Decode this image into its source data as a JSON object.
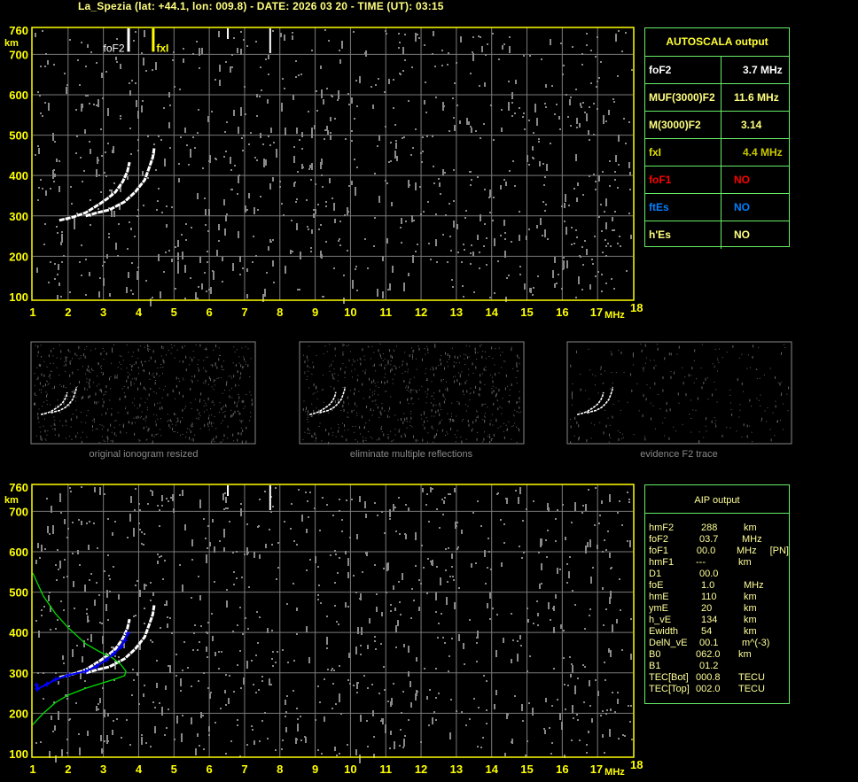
{
  "title": "La_Spezia (lat: +44.1, lon: 009.8) - DATE: 2026 03 20 - TIME (UT): 03:15",
  "colors": {
    "axis": "#ffff00",
    "grid": "#7a7a7a",
    "trace": "#ffffff",
    "noise": "#8a8a8a",
    "profile": "#00dd00",
    "model_trace": "#0000ff",
    "panel_border": "#66ee66",
    "foF1": "#ff0000",
    "ftEs": "#0080ff",
    "fxI": "#c8c800"
  },
  "autoscala": {
    "header": "AUTOSCALA output",
    "rows": [
      {
        "key": "foF2",
        "value": "3.7 MHz",
        "color": "#ffffff",
        "value_color": "#ffffff"
      },
      {
        "key": "MUF(3000)F2",
        "value": "11.6 MHz",
        "color": "#ffff80",
        "value_color": "#ffff80"
      },
      {
        "key": "M(3000)F2",
        "value": "3.14",
        "color": "#ffff80",
        "value_color": "#ffff80"
      },
      {
        "key": "fxI",
        "value": "4.4 MHz",
        "color": "#e0e000",
        "value_color": "#c8c800"
      },
      {
        "key": "foF1",
        "value": "NO",
        "color": "#ff0000",
        "value_color": "#ff0000"
      },
      {
        "key": "ftEs",
        "value": "NO",
        "color": "#0080ff",
        "value_color": "#0080ff"
      },
      {
        "key": "h'Es",
        "value": "NO",
        "color": "#ffff80",
        "value_color": "#ffff80"
      }
    ]
  },
  "aip": {
    "header": "AIP output",
    "rows": [
      [
        "hmF2",
        "288",
        "km",
        ""
      ],
      [
        "foF2",
        "03.7",
        "MHz",
        ""
      ],
      [
        "foF1",
        "00.0",
        "MHz",
        "[PN]"
      ],
      [
        "hmF1",
        "---",
        "km",
        ""
      ],
      [
        "D1",
        "00.0",
        "",
        ""
      ],
      [
        "foE",
        "1.0",
        "MHz",
        ""
      ],
      [
        "hmE",
        "110",
        "km",
        ""
      ],
      [
        "ymE",
        "20",
        "km",
        ""
      ],
      [
        "h_vE",
        "134",
        "km",
        ""
      ],
      [
        "Ewidth",
        "54",
        "km",
        ""
      ],
      [
        "DelN_vE",
        "00.1",
        "m^(-3)",
        ""
      ],
      [
        "B0",
        "062.0",
        "km",
        ""
      ],
      [
        "B1",
        "01.2",
        "",
        ""
      ],
      [
        "TEC[Bot]",
        "000.8",
        "TECU",
        ""
      ],
      [
        "TEC[Top]",
        "002.0",
        "TECU",
        ""
      ]
    ]
  },
  "thumbnails": [
    "original ionogram resized",
    "eliminate multiple reflections",
    "evidence F2 trace"
  ],
  "chart_data": [
    {
      "type": "scatter",
      "xlabel": "MHz",
      "ylabel": "km",
      "xlim": [
        1,
        18
      ],
      "ylim": [
        100,
        760
      ],
      "xticks": [
        "1",
        "2",
        "3",
        "4",
        "5",
        "6",
        "7",
        "8",
        "9",
        "10",
        "11",
        "12",
        "13",
        "14",
        "15",
        "16",
        "17",
        "18"
      ],
      "yticks": [
        "100",
        "200",
        "300",
        "400",
        "500",
        "600",
        "700",
        "760"
      ],
      "grid": true,
      "markers": [
        {
          "label": "foF2",
          "freq": 3.7,
          "color": "#ffffff"
        },
        {
          "label": "fxI",
          "freq": 4.4,
          "color": "#ffff00"
        }
      ],
      "traces": {
        "ordinary": [
          [
            1.75,
            289
          ],
          [
            2.1,
            296
          ],
          [
            2.5,
            308
          ],
          [
            2.9,
            330
          ],
          [
            3.1,
            342
          ],
          [
            3.34,
            359
          ],
          [
            3.55,
            385
          ],
          [
            3.68,
            410
          ],
          [
            3.74,
            433
          ]
        ],
        "extraordinary": [
          [
            2.5,
            300
          ],
          [
            2.83,
            308
          ],
          [
            3.17,
            315
          ],
          [
            3.6,
            335
          ],
          [
            3.9,
            359
          ],
          [
            4.17,
            389
          ],
          [
            4.3,
            420
          ],
          [
            4.4,
            445
          ],
          [
            4.44,
            468
          ]
        ]
      }
    },
    {
      "type": "line",
      "xlabel": "MHz",
      "ylabel": "km",
      "xlim": [
        1,
        18
      ],
      "ylim": [
        100,
        760
      ],
      "xticks": [
        "1",
        "2",
        "3",
        "4",
        "5",
        "6",
        "7",
        "8",
        "9",
        "10",
        "11",
        "12",
        "13",
        "14",
        "15",
        "16",
        "17",
        "18"
      ],
      "yticks": [
        "100",
        "200",
        "300",
        "400",
        "500",
        "600",
        "700",
        "760"
      ],
      "grid": true,
      "traces": {
        "ordinary": [
          [
            1.75,
            289
          ],
          [
            2.1,
            296
          ],
          [
            2.5,
            308
          ],
          [
            2.9,
            330
          ],
          [
            3.1,
            342
          ],
          [
            3.34,
            359
          ],
          [
            3.55,
            385
          ],
          [
            3.68,
            410
          ],
          [
            3.74,
            433
          ]
        ],
        "extraordinary": [
          [
            2.5,
            300
          ],
          [
            2.83,
            308
          ],
          [
            3.17,
            315
          ],
          [
            3.6,
            335
          ],
          [
            3.9,
            359
          ],
          [
            4.17,
            389
          ],
          [
            4.3,
            420
          ],
          [
            4.4,
            445
          ],
          [
            4.44,
            468
          ]
        ]
      },
      "profile": [
        [
          1.0,
          547
        ],
        [
          1.3,
          490
        ],
        [
          1.65,
          446
        ],
        [
          2.0,
          412
        ],
        [
          2.5,
          372
        ],
        [
          2.9,
          352
        ],
        [
          3.26,
          337
        ],
        [
          3.5,
          320
        ],
        [
          3.64,
          304
        ],
        [
          3.6,
          293
        ],
        [
          3.3,
          284
        ],
        [
          2.9,
          273
        ],
        [
          2.5,
          262
        ],
        [
          2.0,
          245
        ],
        [
          1.65,
          227
        ],
        [
          1.3,
          200
        ],
        [
          1.0,
          172
        ]
      ],
      "model_trace": [
        [
          1.1,
          270
        ],
        [
          1.13,
          260
        ],
        [
          1.4,
          272
        ],
        [
          1.65,
          284
        ],
        [
          2.0,
          294
        ],
        [
          2.5,
          304
        ],
        [
          2.8,
          316
        ],
        [
          3.08,
          332
        ],
        [
          3.3,
          348
        ],
        [
          3.5,
          365
        ],
        [
          3.6,
          380
        ],
        [
          3.69,
          398
        ]
      ]
    }
  ]
}
